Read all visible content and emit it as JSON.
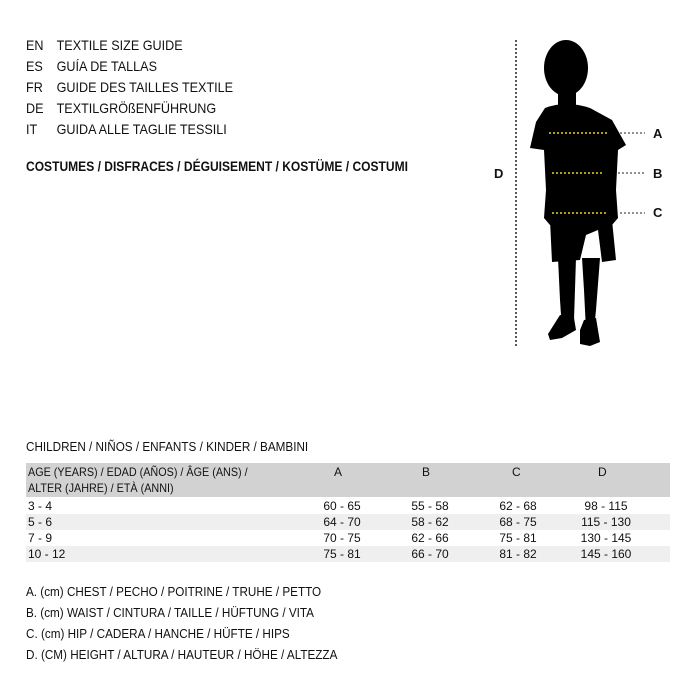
{
  "title_lines": [
    {
      "code": "EN",
      "text": "TEXTILE SIZE GUIDE"
    },
    {
      "code": "ES",
      "text": "GUÍA DE TALLAS"
    },
    {
      "code": "FR",
      "text": "GUIDE DES TAILLES TEXTILE"
    },
    {
      "code": "DE",
      "text": "TEXTILGRÖßENFÜHRUNG"
    },
    {
      "code": "IT",
      "text": "GUIDA ALLE TAGLIE TESSILI"
    }
  ],
  "category_heading": "COSTUMES / DISFRACES / DÉGUISEMENT / KOSTÜME / COSTUMI",
  "figure": {
    "labels": {
      "a": "A",
      "b": "B",
      "c": "C",
      "d": "D"
    },
    "measure_line_color": "#e8d21a"
  },
  "section_title": "CHILDREN / NIÑOS / ENFANTS / KINDER / BAMBINI",
  "table": {
    "header": {
      "age_line1": "AGE (YEARS) / EDAD (AÑOS) / ÂGE (ANS) /",
      "age_line2": "ALTER (JAHRE) / ETÀ (ANNI)",
      "a": "A",
      "b": "B",
      "c": "C",
      "d": "D"
    },
    "rows": [
      {
        "age": "3 - 4",
        "a": "60 - 65",
        "b": "55 - 58",
        "c": "62 - 68",
        "d": "98 - 115"
      },
      {
        "age": "5 - 6",
        "a": "64 - 70",
        "b": "58 - 62",
        "c": "68 - 75",
        "d": "115 - 130"
      },
      {
        "age": "7 - 9",
        "a": "70 - 75",
        "b": "62 - 66",
        "c": "75 - 81",
        "d": "130 - 145"
      },
      {
        "age": "10 - 12",
        "a": "75 - 81",
        "b": "66 - 70",
        "c": "81 - 82",
        "d": "145 - 160"
      }
    ]
  },
  "legend": [
    "A. (cm) CHEST / PECHO / POITRINE / TRUHE / PETTO",
    "B. (cm) WAIST / CINTURA / TAILLE / HÜFTUNG / VITA",
    "C. (cm) HIP / CADERA / HANCHE / HÜFTE / HIPS",
    "D. (CM) HEIGHT / ALTURA / HAUTEUR / HÖHE / ALTEZZA"
  ]
}
